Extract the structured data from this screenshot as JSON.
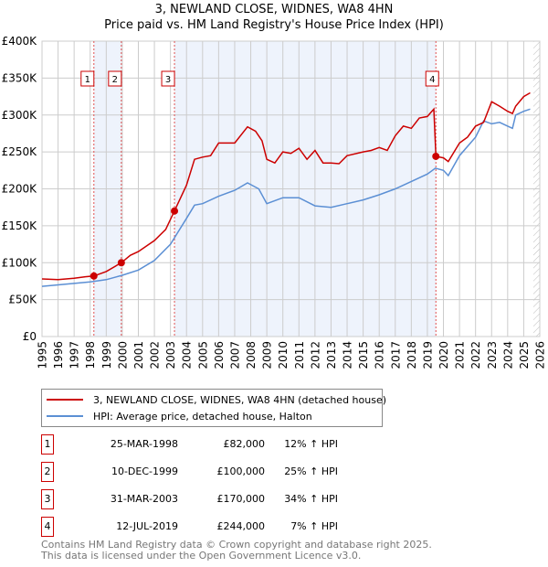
{
  "title": "3, NEWLAND CLOSE, WIDNES, WA8 4HN",
  "subtitle": "Price paid vs. HM Land Registry's House Price Index (HPI)",
  "chart_data": {
    "type": "line",
    "title": "3, NEWLAND CLOSE, WIDNES, WA8 4HN",
    "subtitle": "Price paid vs. HM Land Registry's House Price Index (HPI)",
    "xlim": [
      1995,
      2026
    ],
    "ylim": [
      0,
      400000
    ],
    "x_ticks": [
      "1995",
      "1996",
      "1997",
      "1998",
      "1999",
      "2000",
      "2001",
      "2002",
      "2003",
      "2004",
      "2005",
      "2006",
      "2007",
      "2008",
      "2009",
      "2010",
      "2011",
      "2012",
      "2013",
      "2014",
      "2015",
      "2016",
      "2017",
      "2018",
      "2019",
      "2020",
      "2021",
      "2022",
      "2023",
      "2024",
      "2025",
      "2026"
    ],
    "y_ticks": [
      {
        "v": 0,
        "label": "£0"
      },
      {
        "v": 50000,
        "label": "£50K"
      },
      {
        "v": 100000,
        "label": "£100K"
      },
      {
        "v": 150000,
        "label": "£150K"
      },
      {
        "v": 200000,
        "label": "£200K"
      },
      {
        "v": 250000,
        "label": "£250K"
      },
      {
        "v": 300000,
        "label": "£300K"
      },
      {
        "v": 350000,
        "label": "£350K"
      },
      {
        "v": 400000,
        "label": "£400K"
      }
    ],
    "grid": true,
    "shaded_periods": [
      [
        1998.23,
        1999.94
      ],
      [
        2003.25,
        2019.53
      ]
    ],
    "forecast_hatch_from": 2025.6,
    "series": [
      {
        "name": "3, NEWLAND CLOSE, WIDNES, WA8 4HN (detached house)",
        "color": "#cc0000",
        "x": [
          1995,
          1996,
          1997,
          1997.7,
          1998.23,
          1999,
          1999.94,
          2000.5,
          2001,
          2002,
          2002.7,
          2003.25,
          2004,
          2004.5,
          2005,
          2005.5,
          2006,
          2007,
          2007.8,
          2008.3,
          2008.7,
          2009,
          2009.5,
          2010,
          2010.5,
          2011,
          2011.5,
          2012,
          2012.5,
          2013,
          2013.5,
          2014,
          2015,
          2015.5,
          2016,
          2016.5,
          2017,
          2017.5,
          2018,
          2018.5,
          2019,
          2019.4,
          2019.53,
          2020,
          2020.3,
          2021,
          2021.5,
          2022,
          2022.5,
          2023,
          2023.5,
          2024,
          2024.3,
          2024.5,
          2025,
          2025.4
        ],
        "values": [
          78000,
          77000,
          79000,
          81000,
          82000,
          88000,
          100000,
          110000,
          115000,
          130000,
          145000,
          170000,
          205000,
          240000,
          243000,
          245000,
          262000,
          262000,
          284000,
          278000,
          265000,
          240000,
          235000,
          250000,
          248000,
          255000,
          240000,
          252000,
          235000,
          235000,
          234000,
          245000,
          250000,
          252000,
          256000,
          252000,
          272000,
          285000,
          282000,
          296000,
          298000,
          308000,
          244000,
          242000,
          237000,
          262000,
          270000,
          285000,
          290000,
          318000,
          312000,
          305000,
          302000,
          312000,
          325000,
          330000
        ]
      },
      {
        "name": "HPI: Average price, detached house, Halton",
        "color": "#5b8fd4",
        "x": [
          1995,
          1996,
          1997,
          1998,
          1999,
          2000,
          2001,
          2002,
          2003,
          2004,
          2004.5,
          2005,
          2006,
          2007,
          2007.8,
          2008.5,
          2009,
          2010,
          2011,
          2012,
          2013,
          2014,
          2015,
          2016,
          2017,
          2018,
          2019,
          2019.5,
          2020,
          2020.3,
          2021,
          2022,
          2022.5,
          2023,
          2023.5,
          2024,
          2024.3,
          2024.5,
          2025,
          2025.4
        ],
        "values": [
          68000,
          70000,
          72000,
          74000,
          77000,
          83000,
          90000,
          103000,
          125000,
          160000,
          178000,
          180000,
          190000,
          198000,
          208000,
          200000,
          180000,
          188000,
          188000,
          177000,
          175000,
          180000,
          185000,
          192000,
          200000,
          210000,
          220000,
          228000,
          225000,
          218000,
          245000,
          270000,
          292000,
          288000,
          290000,
          285000,
          282000,
          300000,
          305000,
          308000
        ]
      }
    ],
    "sales": [
      {
        "n": "1",
        "x": 1998.23,
        "value": 82000,
        "date": "25-MAR-1998",
        "price": "£82,000",
        "hpi": "12% ↑ HPI"
      },
      {
        "n": "2",
        "x": 1999.94,
        "value": 100000,
        "date": "10-DEC-1999",
        "price": "£100,000",
        "hpi": "25% ↑ HPI"
      },
      {
        "n": "3",
        "x": 2003.25,
        "value": 170000,
        "date": "31-MAR-2003",
        "price": "£170,000",
        "hpi": "34% ↑ HPI"
      },
      {
        "n": "4",
        "x": 2019.53,
        "value": 244000,
        "date": "12-JUL-2019",
        "price": "£244,000",
        "hpi": "7% ↑ HPI"
      }
    ]
  },
  "legend": {
    "red": "3, NEWLAND CLOSE, WIDNES, WA8 4HN (detached house)",
    "blue": "HPI: Average price, detached house, Halton"
  },
  "footer": {
    "line1": "Contains HM Land Registry data © Crown copyright and database right 2025.",
    "line2": "This data is licensed under the Open Government Licence v3.0."
  }
}
